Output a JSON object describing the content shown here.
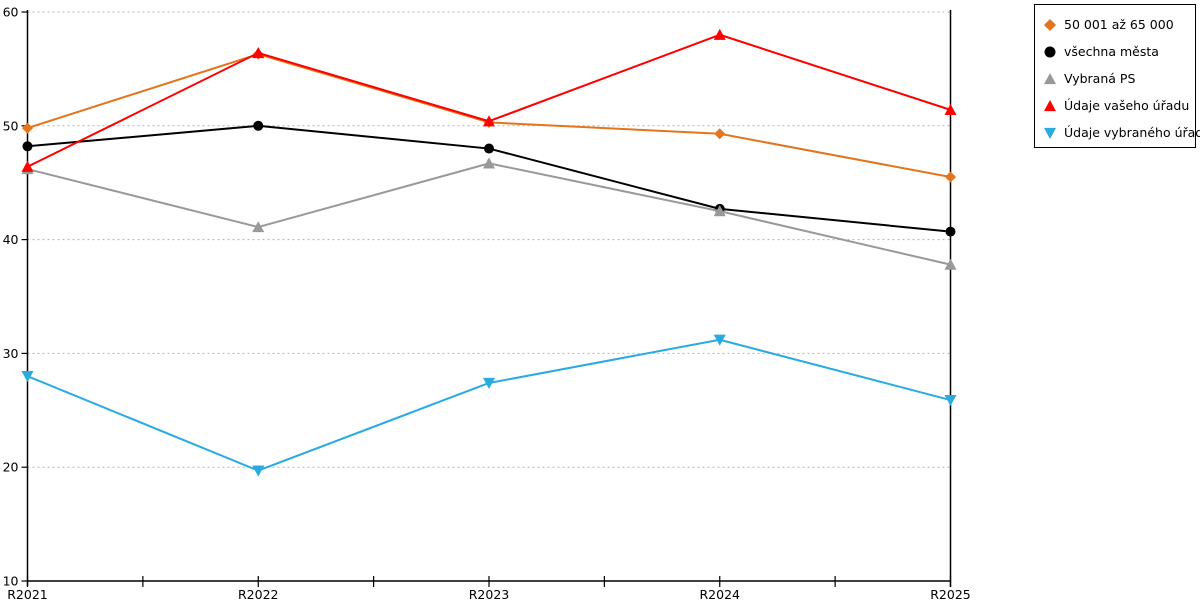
{
  "chart_data": {
    "type": "line",
    "title": "",
    "xlabel": "",
    "ylabel": "",
    "categories": [
      "R2021",
      "R2022",
      "R2023",
      "R2024",
      "R2025"
    ],
    "series": [
      {
        "name": "50 001 až 65 000",
        "color": "#E2751D",
        "marker": "diamond",
        "values": [
          49.8,
          56.3,
          50.3,
          49.3,
          45.5
        ]
      },
      {
        "name": "všechna města",
        "color": "#000000",
        "marker": "circle",
        "values": [
          48.2,
          50.0,
          48.0,
          42.7,
          40.7
        ]
      },
      {
        "name": "Vybraná PS",
        "color": "#999999",
        "marker": "triangle-up",
        "values": [
          46.2,
          41.1,
          46.7,
          42.5,
          37.8
        ]
      },
      {
        "name": "Údaje vašeho úřadu",
        "color": "#FF0000",
        "marker": "triangle-up",
        "values": [
          46.4,
          56.4,
          50.4,
          58.0,
          51.4
        ]
      },
      {
        "name": "Údaje vybraného úřadu",
        "color": "#29ABE2",
        "marker": "triangle-down",
        "values": [
          28.0,
          19.7,
          27.4,
          31.2,
          25.9
        ]
      }
    ],
    "ylim": [
      10,
      60
    ],
    "ytick_step": 10,
    "yticks": [
      "10",
      "20",
      "30",
      "40",
      "50",
      "60"
    ],
    "grid": "horizontal-dotted",
    "legend_position": "top-right"
  },
  "colors": {
    "background": "#FFFFFF",
    "axis": "#000000",
    "gridline": "#B3B3B3",
    "tick_label": "#000000",
    "legend_border": "#000000"
  }
}
